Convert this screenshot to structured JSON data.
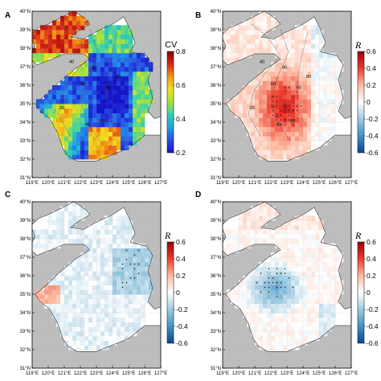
{
  "panels": [
    {
      "id": "A",
      "label": "A",
      "field": "cv",
      "colorbar": {
        "title": "CV",
        "title_italic": false,
        "ticks": [
          "0.8",
          "0.6",
          "0.4",
          "0.2"
        ]
      },
      "contours": true
    },
    {
      "id": "B",
      "label": "B",
      "field": "rb",
      "colorbar": {
        "title": "R",
        "title_italic": true,
        "ticks": [
          "0.6",
          "0.4",
          "0.2",
          "0",
          "-0.2",
          "-0.4",
          "-0.6"
        ]
      },
      "contours": true
    },
    {
      "id": "C",
      "label": "C",
      "field": "rc",
      "colorbar": {
        "title": "R",
        "title_italic": true,
        "ticks": [
          "0.6",
          "0.4",
          "0.2",
          "0",
          "-0.2",
          "-0.4",
          "-0.6"
        ]
      },
      "contours": false
    },
    {
      "id": "D",
      "label": "D",
      "field": "rd",
      "colorbar": {
        "title": "R",
        "title_italic": true,
        "ticks": [
          "0.6",
          "0.4",
          "0.2",
          "0",
          "-0.2",
          "-0.4",
          "-0.6"
        ]
      },
      "contours": false
    }
  ],
  "lat_labels": [
    "40°N",
    "39°N",
    "38°N",
    "37°N",
    "36°N",
    "35°N",
    "34°N",
    "33°N",
    "32°N",
    "31°N"
  ],
  "lon_labels": [
    "119°E",
    "120°E",
    "121°E",
    "122°E",
    "123°E",
    "124°E",
    "125°E",
    "126°E",
    "127°E"
  ],
  "contour_labels": [
    "20",
    "40",
    "60",
    "80"
  ],
  "colors": {
    "land": "#bdbdbd",
    "coast": "#333333",
    "cv_scale": [
      "#1515c8",
      "#2a4ee6",
      "#1f9fe6",
      "#2fd1b8",
      "#a6e23a",
      "#f0e020",
      "#f39a16",
      "#d8261a",
      "#8b0000"
    ],
    "r_scale": [
      "#084594",
      "#4292c6",
      "#9ecae1",
      "#ffffff",
      "#fcbba1",
      "#ef3b2c",
      "#99000d"
    ]
  }
}
